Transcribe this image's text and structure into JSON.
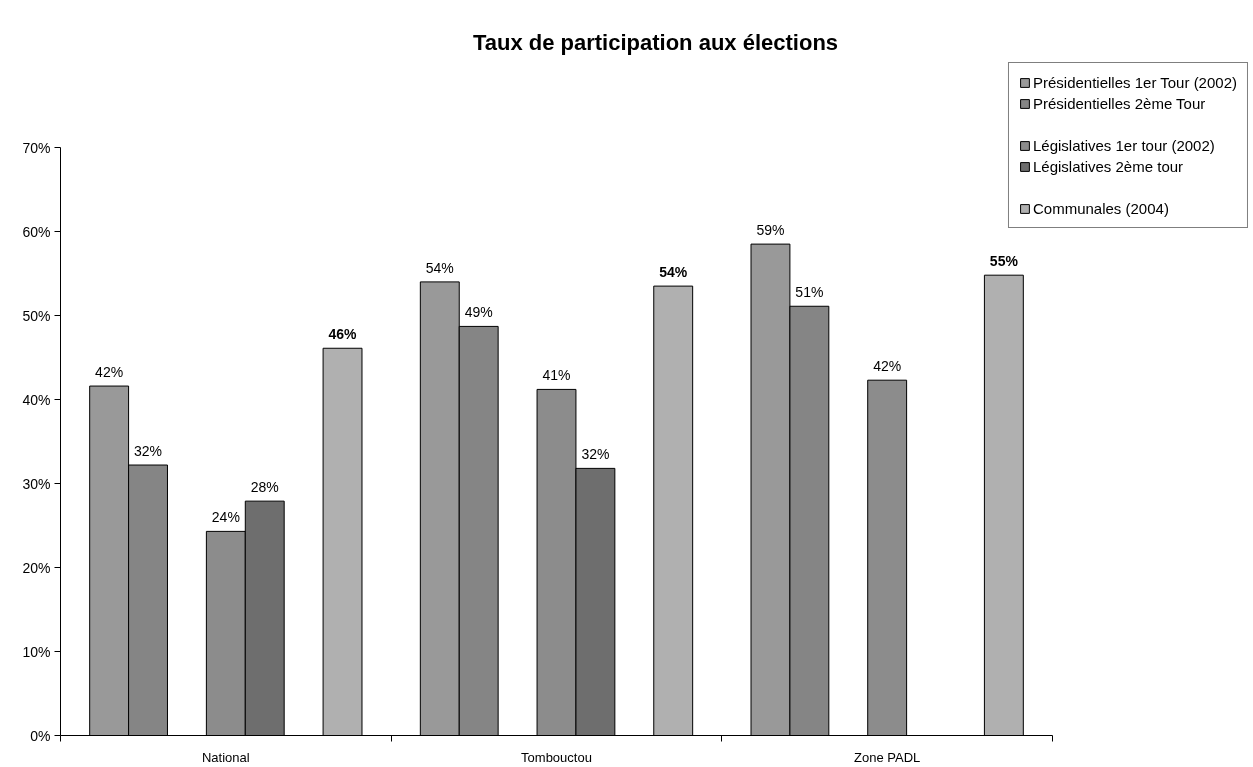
{
  "chart_data": {
    "type": "bar",
    "title": "Taux de participation aux élections",
    "categories": [
      "National",
      "Tombouctou",
      "Zone PADL"
    ],
    "series": [
      {
        "name": "Présidentielles 1er Tour (2002)",
        "color": "#999999",
        "values": [
          41.6,
          54.0,
          58.5
        ],
        "value_labels": [
          "42%",
          "54%",
          "59%"
        ]
      },
      {
        "name": "Présidentielles 2ème Tour",
        "color": "#858585",
        "values": [
          32.2,
          48.7,
          51.1
        ],
        "value_labels": [
          "32%",
          "49%",
          "51%"
        ]
      },
      {
        "values": [
          null,
          null,
          null
        ]
      },
      {
        "name": "Législatives 1er tour (2002)",
        "color": "#8c8c8c",
        "values": [
          24.3,
          41.2,
          42.3
        ],
        "value_labels": [
          "24%",
          "41%",
          "42%"
        ]
      },
      {
        "name": "Législatives 2ème tour",
        "color": "#6e6e6e",
        "values": [
          27.9,
          31.8,
          null
        ],
        "value_labels": [
          "28%",
          "32%",
          null
        ]
      },
      {
        "values": [
          null,
          null,
          null
        ]
      },
      {
        "name": "Communales (2004)",
        "color": "#b0b0b0",
        "values": [
          46.1,
          53.5,
          54.8
        ],
        "value_labels": [
          "46%",
          "54%",
          "55%"
        ]
      }
    ],
    "ylim": [
      0,
      70
    ],
    "yticks": [
      {
        "value": 0,
        "label": "0%"
      },
      {
        "value": 10,
        "label": "10%"
      },
      {
        "value": 20,
        "label": "20%"
      },
      {
        "value": 30,
        "label": "30%"
      },
      {
        "value": 40,
        "label": "40%"
      },
      {
        "value": 50,
        "label": "50%"
      },
      {
        "value": 60,
        "label": "60%"
      },
      {
        "value": 70,
        "label": "70%"
      }
    ],
    "legend": "top right"
  }
}
